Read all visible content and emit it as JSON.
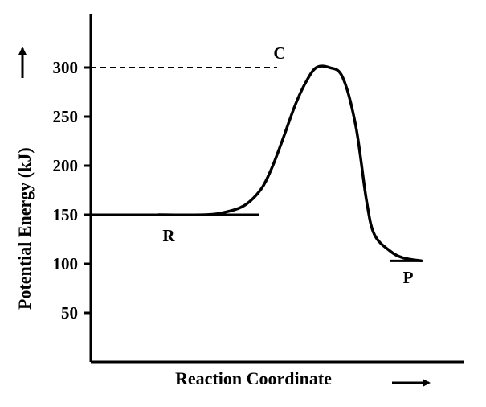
{
  "chart_data": {
    "type": "line",
    "title": "",
    "xlabel": "Reaction Coordinate",
    "ylabel": "Potential Energy (kJ)",
    "ylim": [
      0,
      350
    ],
    "y_ticks": [
      "50",
      "100",
      "150",
      "200",
      "250",
      "300"
    ],
    "y_tick_values": [
      50,
      100,
      150,
      200,
      250,
      300
    ],
    "grid": false,
    "reactant_level": 150,
    "peak_energy": 300,
    "product_level": 103,
    "points": [
      {
        "label": "R",
        "energy": 150
      },
      {
        "label": "C",
        "energy": 300
      },
      {
        "label": "P",
        "energy": 103
      }
    ],
    "curve": {
      "x": [
        0.0,
        0.18,
        0.26,
        0.33,
        0.39,
        0.43,
        0.47,
        0.52,
        0.56,
        0.6,
        0.65,
        0.7,
        0.75,
        0.79,
        0.82,
        0.88,
        0.93,
        1.0
      ],
      "y": [
        150,
        150,
        153,
        160,
        176,
        197,
        225,
        262,
        285,
        300,
        300,
        290,
        240,
        165,
        130,
        113,
        106,
        103
      ]
    },
    "colors": {
      "line": "#000000",
      "background": "#ffffff"
    }
  }
}
